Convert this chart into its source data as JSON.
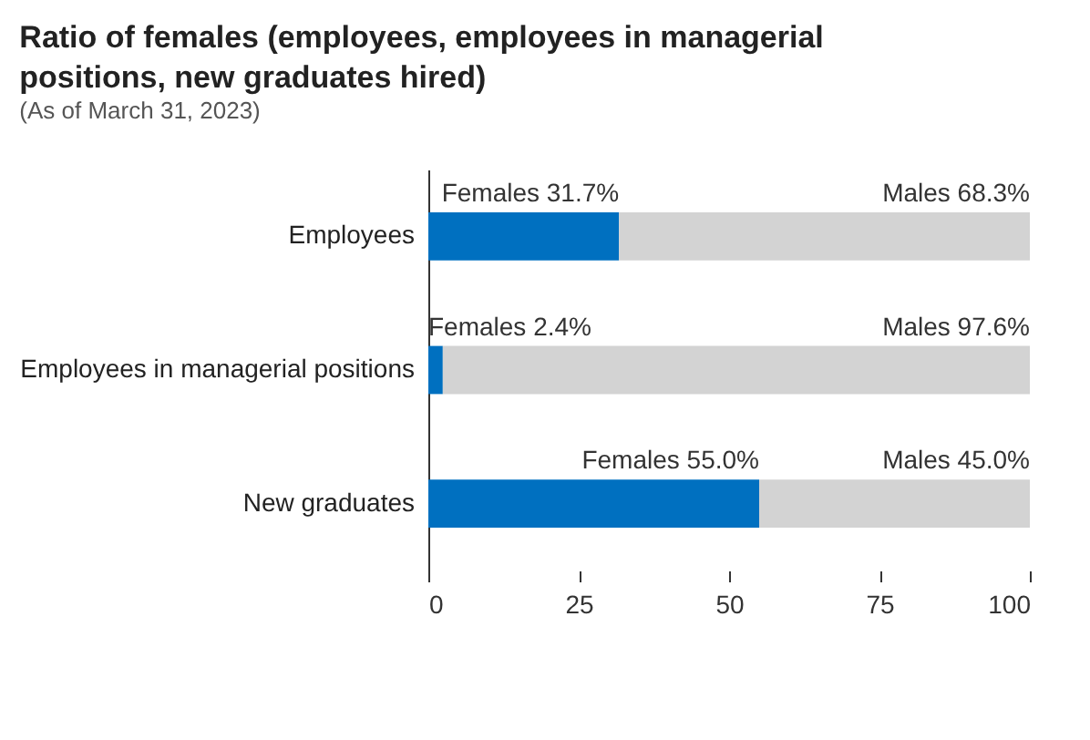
{
  "chart_data": {
    "type": "bar",
    "orientation": "horizontal",
    "stacked": true,
    "title": "Ratio of females (employees, employees in managerial positions, new graduates hired)",
    "subtitle": "(As of March 31, 2023)",
    "categories": [
      "Employees",
      "Employees in managerial positions",
      "New graduates"
    ],
    "series": [
      {
        "name": "Females",
        "color": "#0070c0",
        "values": [
          31.7,
          2.4,
          55.0
        ],
        "value_labels": [
          "31.7%",
          "2.4%",
          "55.0%"
        ]
      },
      {
        "name": "Males",
        "color": "#d3d3d3",
        "values": [
          68.3,
          97.6,
          45.0
        ],
        "value_labels": [
          "68.3%",
          "97.6%",
          "45.0%"
        ]
      }
    ],
    "xlim": [
      0,
      100
    ],
    "xticks": [
      0,
      25,
      50,
      75,
      100
    ],
    "grid": false,
    "legend": false
  }
}
